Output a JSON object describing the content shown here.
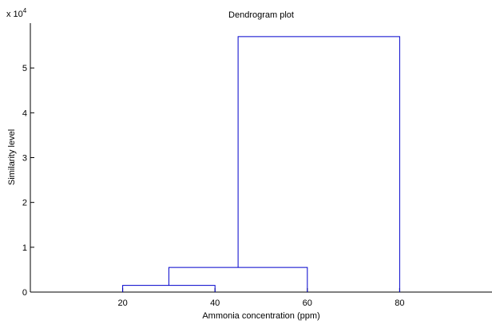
{
  "chart_data": {
    "type": "dendrogram",
    "title": "Dendrogram plot",
    "xlabel": "Ammonia concentration (ppm)",
    "ylabel": "Similarity level",
    "y_exponent_label": "x 10",
    "y_exponent_power": "4",
    "xlim": [
      0,
      100
    ],
    "ylim": [
      0,
      6
    ],
    "x_ticks": [
      {
        "value": 20,
        "label": "20"
      },
      {
        "value": 40,
        "label": "40"
      },
      {
        "value": 60,
        "label": "60"
      },
      {
        "value": 80,
        "label": "80"
      }
    ],
    "y_ticks": [
      {
        "value": 0,
        "label": "0"
      },
      {
        "value": 1,
        "label": "1"
      },
      {
        "value": 2,
        "label": "2"
      },
      {
        "value": 3,
        "label": "3"
      },
      {
        "value": 4,
        "label": "4"
      },
      {
        "value": 5,
        "label": "5"
      }
    ],
    "links": [
      {
        "left_x": 20,
        "left_y": 0,
        "right_x": 40,
        "right_y": 0,
        "height": 0.15
      },
      {
        "left_x": 30,
        "left_y": 0.15,
        "right_x": 60,
        "right_y": 0,
        "height": 0.55
      },
      {
        "left_x": 45,
        "left_y": 0.55,
        "right_x": 80,
        "right_y": 0,
        "height": 5.7
      }
    ],
    "grid": false,
    "link_color": "#0000cc"
  }
}
